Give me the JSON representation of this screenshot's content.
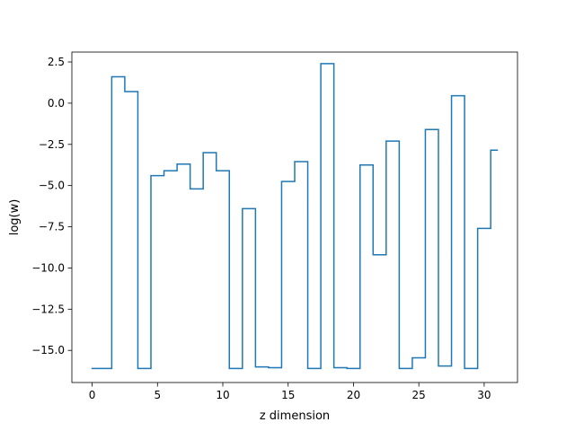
{
  "chart_data": {
    "type": "line",
    "drawstyle": "steps-mid",
    "title": "",
    "xlabel": "z dimension",
    "ylabel": "log(w)",
    "xlim": [
      -1.55,
      32.55
    ],
    "ylim": [
      -16.95,
      3.1
    ],
    "xticks": [
      0,
      5,
      10,
      15,
      20,
      25,
      30
    ],
    "xtick_labels": [
      "0",
      "5",
      "10",
      "15",
      "20",
      "25",
      "30"
    ],
    "yticks": [
      2.5,
      0.0,
      -2.5,
      -5.0,
      -7.5,
      -10.0,
      -12.5,
      -15.0
    ],
    "ytick_labels": [
      "2.5",
      "0.0",
      "−2.5",
      "−5.0",
      "−7.5",
      "−10.0",
      "−12.5",
      "−15.0"
    ],
    "grid": false,
    "legend": false,
    "color": "#1f77b4",
    "x": [
      0,
      1,
      2,
      3,
      4,
      5,
      6,
      7,
      8,
      9,
      10,
      11,
      12,
      13,
      14,
      15,
      16,
      17,
      18,
      19,
      20,
      21,
      22,
      23,
      24,
      25,
      26,
      27,
      28,
      29,
      30,
      31
    ],
    "y": [
      -16.1,
      -16.1,
      1.6,
      0.7,
      -16.1,
      -4.4,
      -4.1,
      -3.7,
      -5.2,
      -3.0,
      -4.1,
      -16.1,
      -6.4,
      -16.0,
      -16.05,
      -4.75,
      -3.55,
      -16.1,
      2.4,
      -16.05,
      -16.1,
      -3.75,
      -9.2,
      -2.3,
      -16.1,
      -15.45,
      -1.6,
      -15.95,
      0.45,
      -16.1,
      -7.6,
      -2.85
    ]
  }
}
